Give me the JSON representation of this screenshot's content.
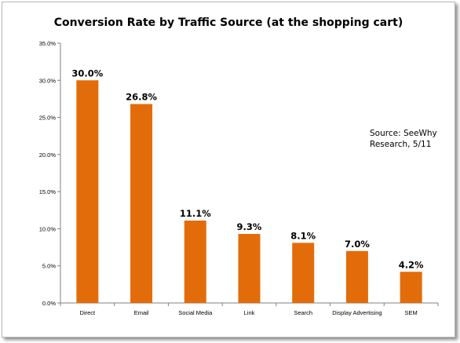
{
  "chart_data": {
    "type": "bar",
    "title": "Conversion Rate by Traffic Source (at the shopping cart)",
    "xlabel": "",
    "ylabel": "",
    "categories": [
      "Direct",
      "Email",
      "Social Media",
      "Link",
      "Search",
      "Display Advertising",
      "SEM"
    ],
    "values": [
      30.0,
      26.8,
      11.1,
      9.3,
      8.1,
      7.0,
      4.2
    ],
    "data_labels": [
      "30.0%",
      "26.8%",
      "11.1%",
      "9.3%",
      "8.1%",
      "7.0%",
      "4.2%"
    ],
    "ylim": [
      0,
      35
    ],
    "yticks": [
      0,
      5,
      10,
      15,
      20,
      25,
      30,
      35
    ],
    "ytick_labels": [
      "0.0%",
      "5.0%",
      "10.0%",
      "15.0%",
      "20.0%",
      "25.0%",
      "30.0%",
      "35.0%"
    ],
    "grid": false,
    "legend": "none",
    "bar_color": "#e36c0a",
    "annotation": "Source: SeeWhy\nResearch, 5/11"
  }
}
